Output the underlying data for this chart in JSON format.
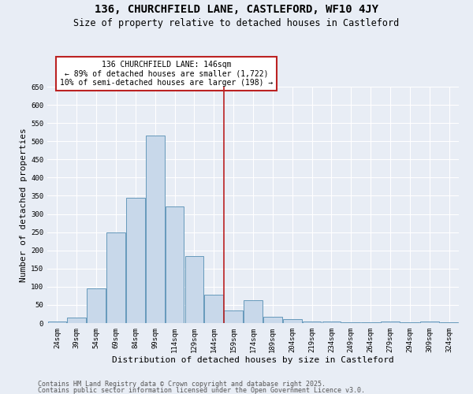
{
  "title_line1": "136, CHURCHFIELD LANE, CASTLEFORD, WF10 4JY",
  "title_line2": "Size of property relative to detached houses in Castleford",
  "xlabel": "Distribution of detached houses by size in Castleford",
  "ylabel": "Number of detached properties",
  "categories": [
    "24sqm",
    "39sqm",
    "54sqm",
    "69sqm",
    "84sqm",
    "99sqm",
    "114sqm",
    "129sqm",
    "144sqm",
    "159sqm",
    "174sqm",
    "189sqm",
    "204sqm",
    "219sqm",
    "234sqm",
    "249sqm",
    "264sqm",
    "279sqm",
    "294sqm",
    "309sqm",
    "324sqm"
  ],
  "values": [
    5,
    15,
    95,
    250,
    345,
    515,
    320,
    185,
    78,
    35,
    62,
    18,
    10,
    5,
    5,
    3,
    3,
    5,
    3,
    5,
    3
  ],
  "bar_color": "#c8d8ea",
  "bar_edge_color": "#6699bb",
  "background_color": "#e8edf5",
  "grid_color": "#ffffff",
  "vline_x_index": 8.5,
  "vline_color": "#bb2222",
  "annotation_text": "136 CHURCHFIELD LANE: 146sqm\n← 89% of detached houses are smaller (1,722)\n10% of semi-detached houses are larger (198) →",
  "annotation_box_facecolor": "#ffffff",
  "annotation_box_edgecolor": "#bb2222",
  "ylim": [
    0,
    650
  ],
  "yticks": [
    0,
    50,
    100,
    150,
    200,
    250,
    300,
    350,
    400,
    450,
    500,
    550,
    600,
    650
  ],
  "footer_line1": "Contains HM Land Registry data © Crown copyright and database right 2025.",
  "footer_line2": "Contains public sector information licensed under the Open Government Licence v3.0.",
  "title_fontsize": 10,
  "subtitle_fontsize": 8.5,
  "annotation_fontsize": 7,
  "axis_label_fontsize": 8,
  "tick_fontsize": 6.5,
  "footer_fontsize": 6
}
